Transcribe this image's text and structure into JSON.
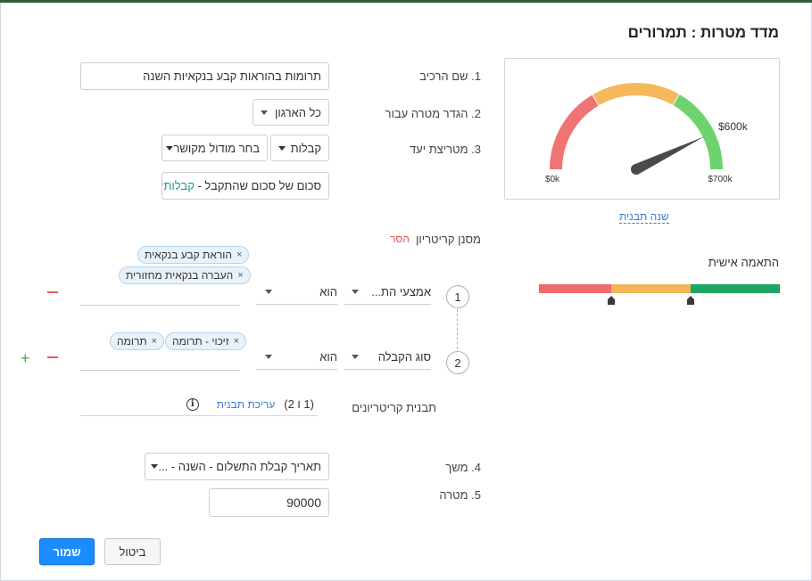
{
  "dialog": {
    "title": "מדד מטרות : תמרורים"
  },
  "form": {
    "name": {
      "label": "1. שם הרכיב",
      "value": "תרומות בהוראות קבע בנקאיות השנה"
    },
    "define_for": {
      "label": "2. הגדר מטרה עבור",
      "value": "כל הארגון"
    },
    "target_metric": {
      "label": "3. מטריצת יעד",
      "module_value": "קבלות",
      "related_module_placeholder": "בחר מודול מקושר",
      "aggregate_prefix": "סכום של סכום שהתקבל - ",
      "aggregate_module": "קבלות"
    },
    "criteria_filter": {
      "label": "מסנן קריטריון",
      "remove_label": "הסר"
    },
    "criteria": [
      {
        "index": "1",
        "field": "אמצעי הת...",
        "operator": "הוא",
        "chips": [
          "הוראת קבע בנקאית",
          "העברה בנקאית מחזורית"
        ]
      },
      {
        "index": "2",
        "field": "סוג הקבלה",
        "operator": "הוא",
        "chips": [
          "זיכוי - תרומה",
          "תרומה"
        ]
      }
    ],
    "chip_remove": "×",
    "criteria_template": {
      "label": "תבנית קריטריונים",
      "value": "(1 ו 2)",
      "edit_label": "עריכת תבנית"
    },
    "duration": {
      "label": "4. משך",
      "value": "תאריך קבלת התשלום - השנה - ..."
    },
    "target": {
      "label": "5. מטרה",
      "value": "90000"
    }
  },
  "gauge": {
    "min_label": "$0k",
    "max_label": "$700k",
    "value_label": "$600k",
    "min": 0,
    "max": 700,
    "value": 600,
    "bands": [
      {
        "from": 0,
        "to": 233,
        "color": "#f07474"
      },
      {
        "from": 233,
        "to": 467,
        "color": "#f5b95c"
      },
      {
        "from": 467,
        "to": 700,
        "color": "#6dd36d"
      }
    ],
    "change_template_label": "שנה תבנית"
  },
  "personalization": {
    "label": "התאמה אישית",
    "segments": [
      {
        "fraction": 0.3,
        "color": "#ef6b6b"
      },
      {
        "fraction": 0.33,
        "color": "#f2b65a"
      },
      {
        "fraction": 0.37,
        "color": "#1fa463"
      }
    ]
  },
  "footer": {
    "save_label": "שמור",
    "cancel_label": "ביטול"
  },
  "colors": {
    "primary": "#1a8cff",
    "link": "#3a7bd5",
    "danger": "#d9534f",
    "teal": "#1a9a8f"
  }
}
